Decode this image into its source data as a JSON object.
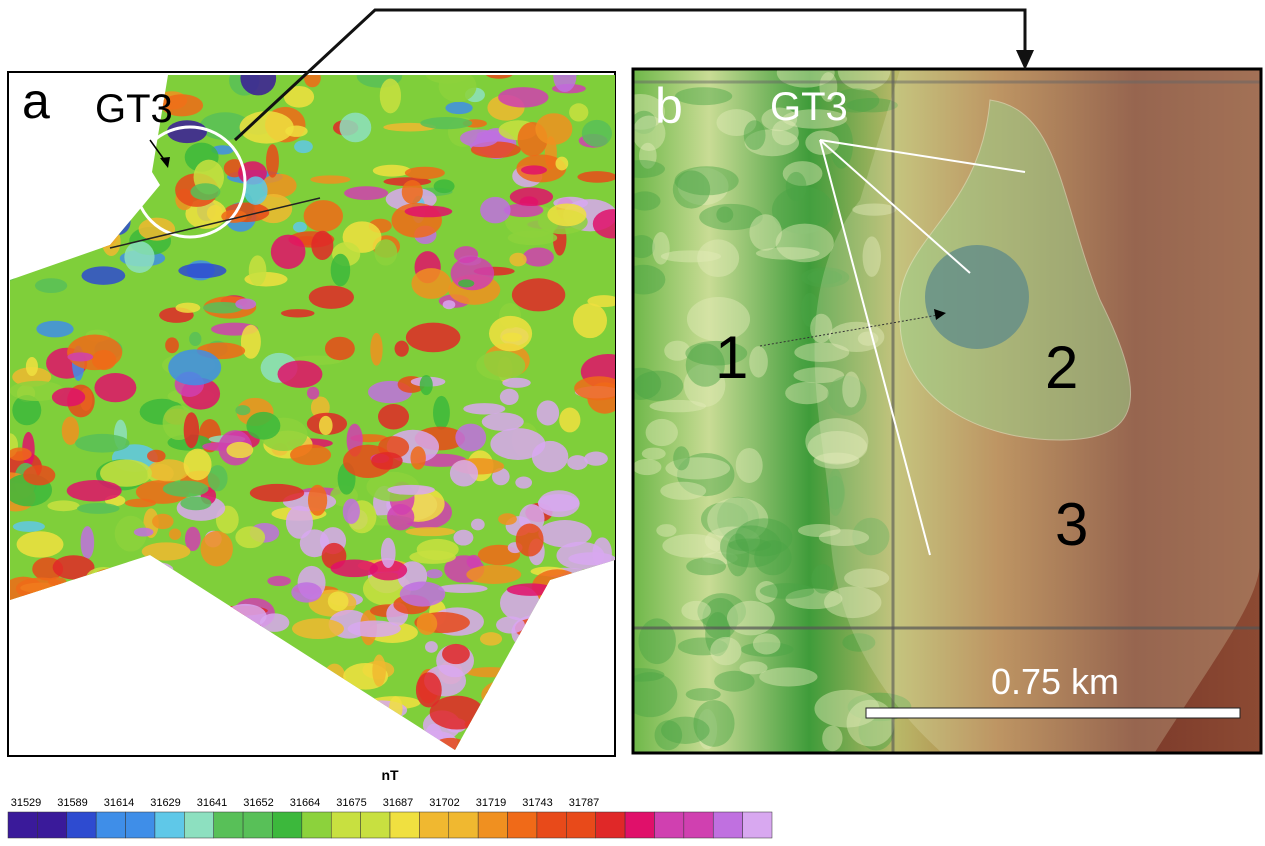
{
  "panel_a": {
    "label": "a",
    "marker": "GT3"
  },
  "panel_b": {
    "label": "b",
    "marker": "GT3",
    "zones": [
      "1",
      "2",
      "3"
    ],
    "scale_bar": "0.75 km"
  },
  "colorbar": {
    "unit": "nT",
    "ticks": [
      31529,
      31589,
      31614,
      31629,
      31641,
      31652,
      31664,
      31675,
      31687,
      31702,
      31719,
      31743,
      31787
    ]
  }
}
